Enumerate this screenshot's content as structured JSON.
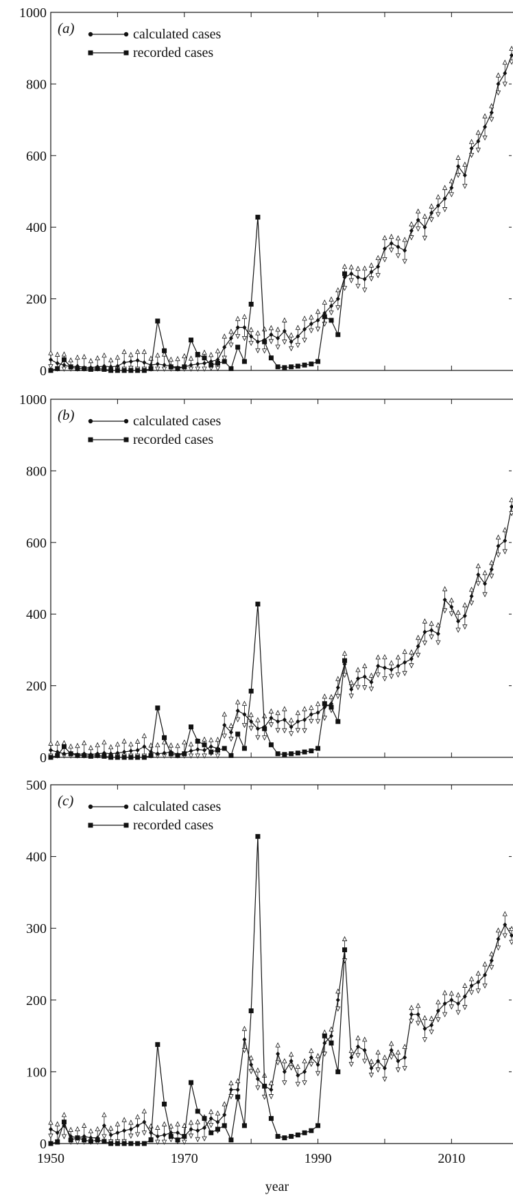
{
  "x_axis": {
    "label": "year",
    "ticks": [
      1950,
      1970,
      1990,
      2010
    ],
    "range": [
      1950,
      2019
    ]
  },
  "colors": {
    "line": "#111111",
    "open_marker": "#ffffff"
  },
  "chart_data": [
    {
      "type": "line",
      "panel_label": "(a)",
      "ylim": [
        0,
        1000
      ],
      "yticks": [
        0,
        200,
        400,
        600,
        800,
        1000
      ],
      "legend": {
        "placement": "top-left",
        "entries": [
          "calculated cases",
          "recorded cases"
        ]
      },
      "series": [
        {
          "name": "calculated cases",
          "marker": "diamond",
          "x": [
            1950,
            1951,
            1952,
            1953,
            1954,
            1955,
            1956,
            1957,
            1958,
            1959,
            1960,
            1961,
            1962,
            1963,
            1964,
            1965,
            1966,
            1967,
            1968,
            1969,
            1970,
            1971,
            1972,
            1973,
            1974,
            1975,
            1976,
            1977,
            1978,
            1979,
            1980,
            1981,
            1982,
            1983,
            1984,
            1985,
            1986,
            1987,
            1988,
            1989,
            1990,
            1991,
            1992,
            1993,
            1994,
            1995,
            1996,
            1997,
            1998,
            1999,
            2000,
            2001,
            2002,
            2003,
            2004,
            2005,
            2006,
            2007,
            2008,
            2009,
            2010,
            2011,
            2012,
            2013,
            2014,
            2015,
            2016,
            2017,
            2018,
            2019
          ],
          "values": [
            30,
            20,
            15,
            10,
            12,
            8,
            8,
            10,
            12,
            10,
            12,
            22,
            25,
            28,
            22,
            15,
            18,
            15,
            12,
            8,
            10,
            15,
            18,
            20,
            25,
            30,
            65,
            90,
            120,
            120,
            95,
            80,
            85,
            100,
            90,
            110,
            80,
            95,
            115,
            130,
            140,
            160,
            180,
            200,
            260,
            270,
            260,
            255,
            275,
            290,
            340,
            355,
            345,
            335,
            390,
            420,
            400,
            440,
            460,
            480,
            510,
            570,
            545,
            620,
            640,
            680,
            720,
            800,
            830,
            880
          ]
        },
        {
          "name": "recorded cases",
          "marker": "square",
          "x": [
            1950,
            1951,
            1952,
            1953,
            1954,
            1955,
            1956,
            1957,
            1958,
            1959,
            1960,
            1961,
            1962,
            1963,
            1964,
            1965,
            1966,
            1967,
            1968,
            1969,
            1970,
            1971,
            1972,
            1973,
            1974,
            1975,
            1976,
            1977,
            1978,
            1979,
            1980,
            1981,
            1982,
            1983,
            1984,
            1985,
            1986,
            1987,
            1988,
            1989,
            1990,
            1991,
            1992,
            1993,
            1994
          ],
          "values": [
            0,
            5,
            30,
            10,
            5,
            5,
            3,
            5,
            3,
            0,
            0,
            0,
            0,
            0,
            0,
            5,
            138,
            55,
            10,
            5,
            10,
            85,
            45,
            35,
            15,
            20,
            25,
            5,
            65,
            25,
            185,
            428,
            80,
            35,
            10,
            8,
            10,
            12,
            15,
            18,
            25,
            150,
            140,
            100,
            270
          ]
        }
      ]
    },
    {
      "type": "line",
      "panel_label": "(b)",
      "ylim": [
        0,
        1000
      ],
      "yticks": [
        0,
        200,
        400,
        600,
        800,
        1000
      ],
      "legend": {
        "placement": "top-left",
        "entries": [
          "calculated cases",
          "recorded cases"
        ]
      },
      "series": [
        {
          "name": "calculated cases",
          "marker": "diamond",
          "x": [
            1950,
            1951,
            1952,
            1953,
            1954,
            1955,
            1956,
            1957,
            1958,
            1959,
            1960,
            1961,
            1962,
            1963,
            1964,
            1965,
            1966,
            1967,
            1968,
            1969,
            1970,
            1971,
            1972,
            1973,
            1974,
            1975,
            1976,
            1977,
            1978,
            1979,
            1980,
            1981,
            1982,
            1983,
            1984,
            1985,
            1986,
            1987,
            1988,
            1989,
            1990,
            1991,
            1992,
            1993,
            1994,
            1995,
            1996,
            1997,
            1998,
            1999,
            2000,
            2001,
            2002,
            2003,
            2004,
            2005,
            2006,
            2007,
            2008,
            2009,
            2010,
            2011,
            2012,
            2013,
            2014,
            2015,
            2016,
            2017,
            2018,
            2019
          ],
          "values": [
            20,
            15,
            10,
            12,
            8,
            10,
            8,
            10,
            12,
            10,
            12,
            15,
            18,
            20,
            30,
            15,
            10,
            12,
            15,
            8,
            12,
            18,
            22,
            20,
            30,
            25,
            90,
            70,
            130,
            120,
            100,
            80,
            85,
            110,
            100,
            105,
            85,
            100,
            105,
            120,
            125,
            140,
            150,
            195,
            260,
            190,
            220,
            225,
            210,
            255,
            250,
            245,
            255,
            265,
            275,
            310,
            350,
            355,
            345,
            440,
            420,
            380,
            395,
            450,
            510,
            485,
            525,
            590,
            605,
            700
          ]
        },
        {
          "name": "recorded cases",
          "marker": "square",
          "x": [
            1950,
            1951,
            1952,
            1953,
            1954,
            1955,
            1956,
            1957,
            1958,
            1959,
            1960,
            1961,
            1962,
            1963,
            1964,
            1965,
            1966,
            1967,
            1968,
            1969,
            1970,
            1971,
            1972,
            1973,
            1974,
            1975,
            1976,
            1977,
            1978,
            1979,
            1980,
            1981,
            1982,
            1983,
            1984,
            1985,
            1986,
            1987,
            1988,
            1989,
            1990,
            1991,
            1992,
            1993,
            1994
          ],
          "values": [
            0,
            5,
            30,
            10,
            5,
            5,
            3,
            5,
            3,
            0,
            0,
            0,
            0,
            0,
            0,
            5,
            138,
            55,
            10,
            5,
            10,
            85,
            45,
            35,
            15,
            20,
            25,
            5,
            65,
            25,
            185,
            428,
            80,
            35,
            10,
            8,
            10,
            12,
            15,
            18,
            25,
            150,
            140,
            100,
            270
          ]
        }
      ]
    },
    {
      "type": "line",
      "panel_label": "(c)",
      "ylim": [
        0,
        500
      ],
      "yticks": [
        0,
        100,
        200,
        300,
        400,
        500
      ],
      "legend": {
        "placement": "top-left",
        "entries": [
          "calculated cases",
          "recorded cases"
        ]
      },
      "series": [
        {
          "name": "calculated cases",
          "marker": "diamond",
          "x": [
            1950,
            1951,
            1952,
            1953,
            1954,
            1955,
            1956,
            1957,
            1958,
            1959,
            1960,
            1961,
            1962,
            1963,
            1964,
            1965,
            1966,
            1967,
            1968,
            1969,
            1970,
            1971,
            1972,
            1973,
            1974,
            1975,
            1976,
            1977,
            1978,
            1979,
            1980,
            1981,
            1982,
            1983,
            1984,
            1985,
            1986,
            1987,
            1988,
            1989,
            1990,
            1991,
            1992,
            1993,
            1994,
            1995,
            1996,
            1997,
            1998,
            1999,
            2000,
            2001,
            2002,
            2003,
            2004,
            2005,
            2006,
            2007,
            2008,
            2009,
            2010,
            2011,
            2012,
            2013,
            2014,
            2015,
            2016,
            2017,
            2018,
            2019
          ],
          "values": [
            20,
            15,
            25,
            10,
            8,
            10,
            8,
            8,
            25,
            12,
            15,
            18,
            20,
            25,
            30,
            15,
            10,
            12,
            15,
            15,
            10,
            20,
            18,
            22,
            35,
            30,
            40,
            75,
            75,
            145,
            110,
            90,
            80,
            75,
            125,
            100,
            115,
            95,
            100,
            120,
            110,
            140,
            150,
            200,
            270,
            120,
            135,
            130,
            105,
            115,
            105,
            130,
            115,
            120,
            180,
            180,
            160,
            165,
            185,
            195,
            200,
            195,
            205,
            220,
            225,
            235,
            255,
            285,
            305,
            290
          ]
        },
        {
          "name": "recorded cases",
          "marker": "square",
          "x": [
            1950,
            1951,
            1952,
            1953,
            1954,
            1955,
            1956,
            1957,
            1958,
            1959,
            1960,
            1961,
            1962,
            1963,
            1964,
            1965,
            1966,
            1967,
            1968,
            1969,
            1970,
            1971,
            1972,
            1973,
            1974,
            1975,
            1976,
            1977,
            1978,
            1979,
            1980,
            1981,
            1982,
            1983,
            1984,
            1985,
            1986,
            1987,
            1988,
            1989,
            1990,
            1991,
            1992,
            1993,
            1994
          ],
          "values": [
            0,
            2,
            30,
            5,
            8,
            5,
            3,
            5,
            3,
            0,
            0,
            0,
            0,
            0,
            0,
            5,
            138,
            55,
            10,
            5,
            10,
            85,
            45,
            35,
            15,
            20,
            25,
            5,
            65,
            25,
            185,
            428,
            80,
            35,
            10,
            8,
            10,
            12,
            15,
            18,
            25,
            150,
            140,
            100,
            270
          ]
        }
      ]
    }
  ]
}
